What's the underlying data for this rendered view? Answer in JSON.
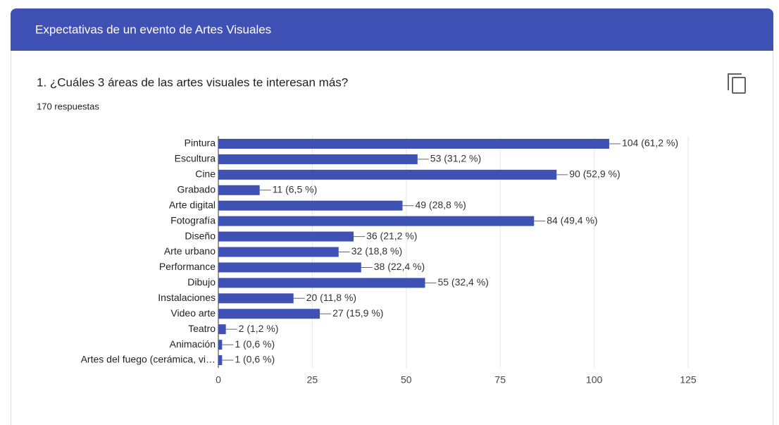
{
  "header": {
    "title": "Expectativas de un evento de Artes Visuales"
  },
  "question": {
    "title": "1. ¿Cuáles 3 áreas de las artes visuales te interesan más?",
    "responses": "170 respuestas"
  },
  "chart_data": {
    "type": "hbar",
    "categories": [
      "Pintura",
      "Escultura",
      "Cine",
      "Grabado",
      "Arte digital",
      "Fotografía",
      "Diseño",
      "Arte urbano",
      "Performance",
      "Dibujo",
      "Instalaciones",
      "Video arte",
      "Teatro",
      "Animación",
      "Artes del fuego (cerámica, vi…"
    ],
    "values": [
      104,
      53,
      90,
      11,
      49,
      84,
      36,
      32,
      38,
      55,
      20,
      27,
      2,
      1,
      1
    ],
    "value_labels": [
      "104 (61,2 %)",
      "53 (31,2 %)",
      "90 (52,9 %)",
      "11 (6,5 %)",
      "49 (28,8 %)",
      "84 (49,4 %)",
      "36 (21,2 %)",
      "32 (18,8 %)",
      "38 (22,4 %)",
      "55 (32,4 %)",
      "20 (11,8 %)",
      "27 (15,9 %)",
      "2 (1,2 %)",
      "1 (0,6 %)",
      "1 (0,6 %)"
    ],
    "color": "#3f51b5",
    "xlim": [
      0,
      125
    ],
    "xticks": [
      0,
      25,
      50,
      75,
      100,
      125
    ],
    "grid": true
  }
}
